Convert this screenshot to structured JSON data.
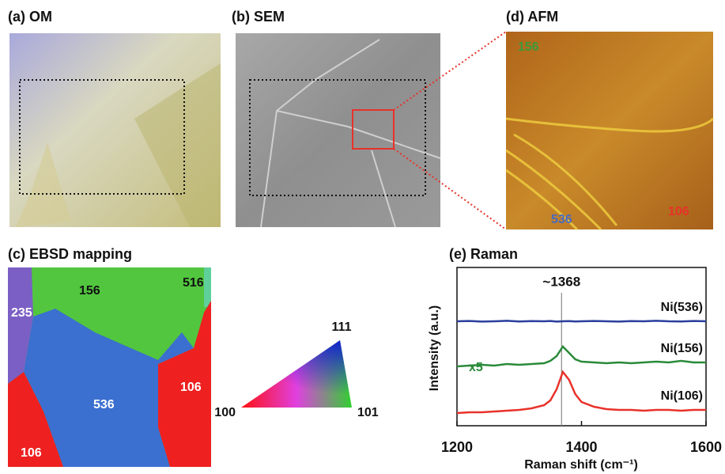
{
  "panels": {
    "om": {
      "title": "(a) OM"
    },
    "sem": {
      "title": "(b) SEM"
    },
    "afm": {
      "title": "(d) AFM",
      "labels": [
        "156",
        "536",
        "106"
      ]
    },
    "ebsd": {
      "title": "(c) EBSD mapping",
      "labels": [
        "156",
        "516",
        "235",
        "536",
        "106",
        "106"
      ]
    },
    "legend_triangle": {
      "labels": [
        "111",
        "100",
        "101"
      ]
    }
  },
  "chart_data": {
    "type": "line",
    "title": "(e) Raman",
    "x_label": "Raman shift (cm⁻¹)",
    "y_label": "Intensity (a.u.)",
    "xlim": [
      1200,
      1600
    ],
    "xticks": [
      1200,
      1400,
      1600
    ],
    "ylim": [
      0,
      10
    ],
    "annotation": {
      "x": 1368,
      "label": "~1368"
    },
    "scale_note": "x5",
    "x": [
      1200,
      1220,
      1240,
      1260,
      1280,
      1300,
      1320,
      1340,
      1350,
      1360,
      1370,
      1380,
      1390,
      1400,
      1420,
      1440,
      1460,
      1480,
      1500,
      1520,
      1540,
      1560,
      1580,
      1600
    ],
    "series": [
      {
        "name": "Ni(536)",
        "color": "#2a3f9e",
        "values": [
          6.6,
          6.62,
          6.58,
          6.6,
          6.63,
          6.59,
          6.61,
          6.6,
          6.62,
          6.58,
          6.6,
          6.61,
          6.59,
          6.6,
          6.62,
          6.6,
          6.58,
          6.61,
          6.6,
          6.63,
          6.6,
          6.59,
          6.62,
          6.6
        ]
      },
      {
        "name": "Ni(156)",
        "color": "#2a8a3a",
        "values": [
          3.75,
          3.8,
          3.85,
          3.8,
          3.9,
          3.85,
          3.9,
          3.95,
          4.1,
          4.4,
          5.0,
          4.6,
          4.2,
          4.05,
          4.0,
          3.95,
          4.0,
          3.95,
          4.0,
          4.05,
          4.0,
          4.1,
          4.0,
          4.0
        ]
      },
      {
        "name": "Ni(106)",
        "color": "#e8322a",
        "values": [
          0.8,
          0.85,
          0.85,
          0.9,
          0.95,
          1.0,
          1.1,
          1.3,
          1.6,
          2.3,
          3.4,
          2.9,
          2.0,
          1.5,
          1.2,
          1.05,
          1.0,
          1.0,
          0.95,
          1.0,
          1.0,
          0.95,
          1.0,
          1.0
        ]
      }
    ]
  }
}
